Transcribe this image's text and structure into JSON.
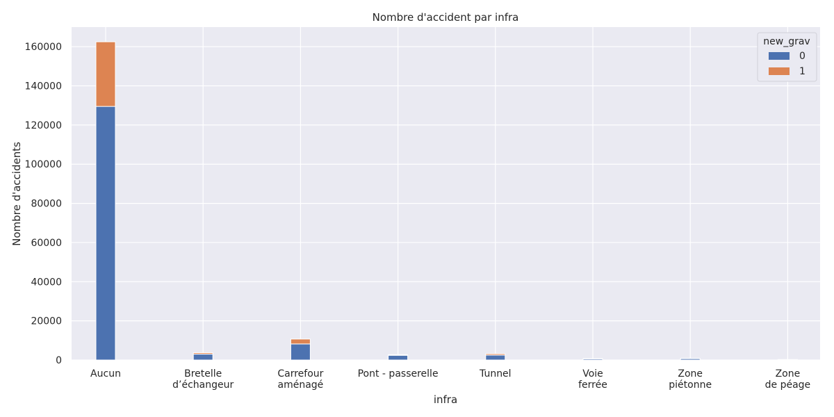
{
  "chart_data": {
    "type": "bar",
    "stacked": true,
    "title": "Nombre d'accident par infra",
    "xlabel": "infra",
    "ylabel": "Nombre d'accidents",
    "categories": [
      [
        "Aucun"
      ],
      [
        "Bretelle",
        "d’échangeur"
      ],
      [
        "Carrefour",
        "aménagé"
      ],
      [
        "Pont - passerelle"
      ],
      [
        "Tunnel"
      ],
      [
        "Voie",
        "ferrée"
      ],
      [
        "Zone",
        "piétonne"
      ],
      [
        "Zone",
        "de péage"
      ]
    ],
    "series": [
      {
        "name": "0",
        "color": "#4c72b0",
        "values": [
          129500,
          3000,
          8200,
          2400,
          2500,
          600,
          700,
          200
        ]
      },
      {
        "name": "1",
        "color": "#dd8452",
        "values": [
          33000,
          700,
          2500,
          300,
          700,
          150,
          200,
          50
        ]
      }
    ],
    "ylim": [
      0,
      170000
    ],
    "yticks": [
      0,
      20000,
      40000,
      60000,
      80000,
      100000,
      120000,
      140000,
      160000
    ],
    "grid": true,
    "legend": {
      "title": "new_grav",
      "placement": "top-right"
    }
  }
}
